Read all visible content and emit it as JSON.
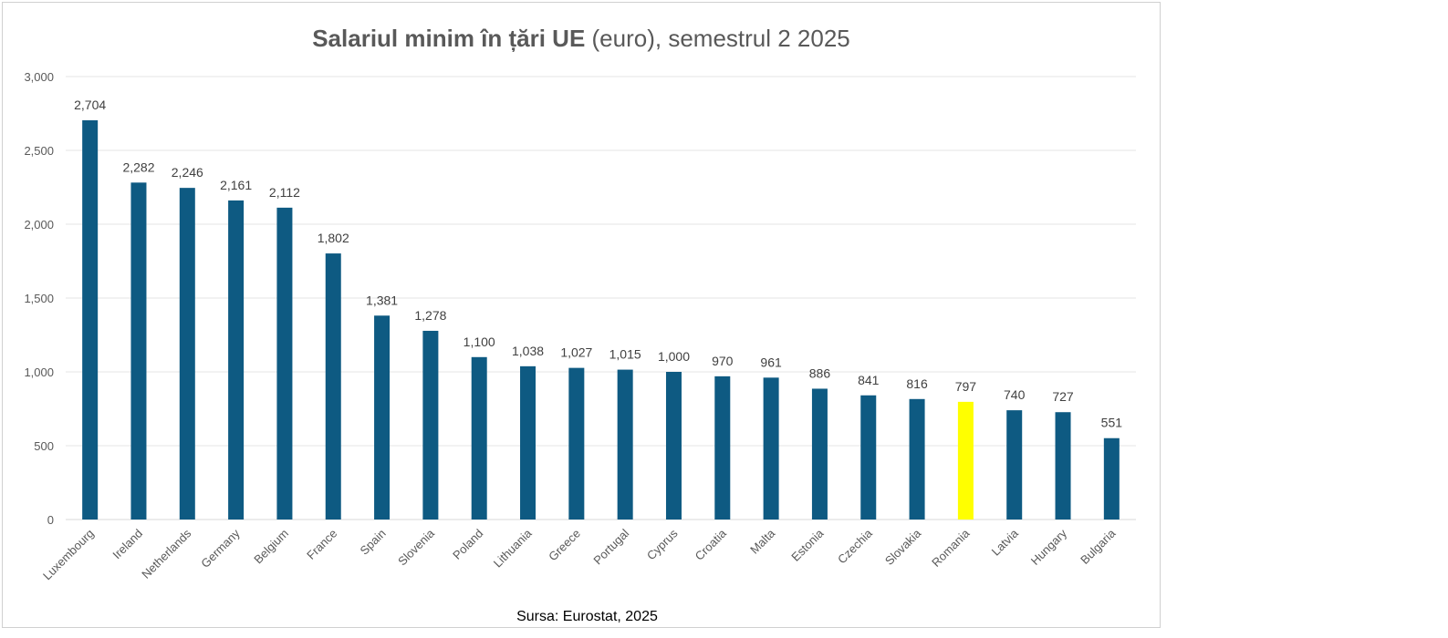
{
  "chart_data": {
    "type": "bar",
    "title_bold": "Salariul minim în țări  UE",
    "title_rest": " (euro), semestrul 2 2025",
    "categories": [
      "Luxembourg",
      "Ireland",
      "Netherlands",
      "Germany",
      "Belgium",
      "France",
      "Spain",
      "Slovenia",
      "Poland",
      "Lithuania",
      "Greece",
      "Portugal",
      "Cyprus",
      "Croatia",
      "Malta",
      "Estonia",
      "Czechia",
      "Slovakia",
      "Romania",
      "Latvia",
      "Hungary",
      "Bulgaria"
    ],
    "values": [
      2704,
      2282,
      2246,
      2161,
      2112,
      1802,
      1381,
      1278,
      1100,
      1038,
      1027,
      1015,
      1000,
      970,
      961,
      886,
      841,
      816,
      797,
      740,
      727,
      551
    ],
    "value_labels": [
      "2,704",
      "2,282",
      "2,246",
      "2,161",
      "2,112",
      "1,802",
      "1,381",
      "1,278",
      "1,100",
      "1,038",
      "1,027",
      "1,015",
      "1,000",
      "970",
      "961",
      "886",
      "841",
      "816",
      "797",
      "740",
      "727",
      "551"
    ],
    "ylim": [
      0,
      3000
    ],
    "yticks": [
      0,
      500,
      1000,
      1500,
      2000,
      2500,
      3000
    ],
    "ytick_labels": [
      "0",
      "500",
      "1,000",
      "1,500",
      "2,000",
      "2,500",
      "3,000"
    ],
    "xlabel": "",
    "ylabel": "",
    "grid": true,
    "legend": "none",
    "highlight_category": "Romania",
    "colors": {
      "bar": "#0e5a82",
      "highlight": "#ffff00",
      "grid": "#e6e6e6",
      "axis": "#d9d9d9",
      "title": "#595959"
    }
  },
  "source_note": "Sursa: Eurostat, 2025"
}
